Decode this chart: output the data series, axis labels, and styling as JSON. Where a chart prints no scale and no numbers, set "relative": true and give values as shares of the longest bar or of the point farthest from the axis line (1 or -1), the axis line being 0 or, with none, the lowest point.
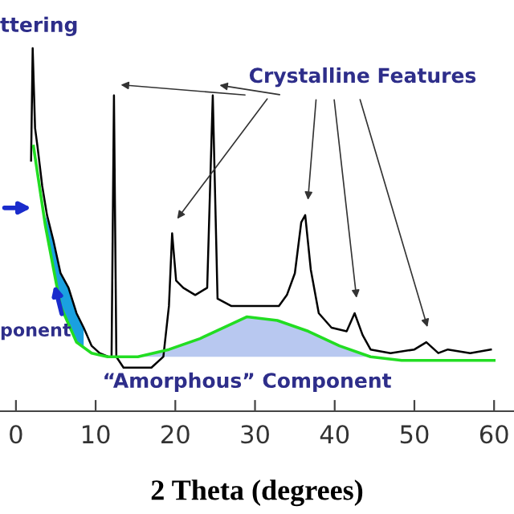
{
  "chart_data": {
    "type": "line",
    "relative": true,
    "xlabel": "2 Theta (degrees)",
    "xlim": [
      -2,
      62.5
    ],
    "xticks": [
      0,
      10,
      20,
      30,
      40,
      50,
      60
    ],
    "grid": false,
    "marker": "none",
    "line_style": "solid",
    "annotations": [
      "ttering",
      "Crystalline Features",
      {
        "text": "ponent",
        "x": 4.7,
        "y": 0.36
      },
      "“Amorphous” Component"
    ],
    "series": [
      {
        "type": "area",
        "color": "#b8c8f0",
        "x": [
          15.3,
          19.2,
          23.1,
          27,
          29,
          32.8,
          36.7,
          40.6,
          44.5
        ],
        "values": [
          0.15,
          0.17,
          0.2,
          0.24,
          0.26,
          0.25,
          0.22,
          0.18,
          0.15
        ]
      },
      {
        "type": "area",
        "color": "#1aa0e0",
        "x": [
          3.7,
          4.7,
          5.6,
          6.6,
          7.6,
          8.5
        ],
        "values": [
          0.54,
          0.47,
          0.38,
          0.34,
          0.27,
          0.23
        ]
      },
      {
        "color": "#000000",
        "x": [
          1.9,
          2.1,
          2.4,
          2.7,
          3.3,
          3.9,
          4.7,
          5.6,
          6.6,
          7.6,
          8.5,
          9.5,
          10.5,
          11.6,
          12.0,
          12.3,
          12.6,
          13.5,
          15,
          17,
          18.5,
          19.2,
          19.6,
          20.1,
          21,
          22.5,
          24,
          24.7,
          25.3,
          27,
          29,
          31,
          33,
          34,
          35,
          35.8,
          36.3,
          37,
          38,
          39.6,
          41.5,
          42.5,
          43.5,
          44.5,
          47,
          50,
          51.5,
          53,
          54.2,
          57,
          59.6
        ],
        "values": [
          0.69,
          1.0,
          0.78,
          0.73,
          0.62,
          0.54,
          0.47,
          0.38,
          0.34,
          0.27,
          0.23,
          0.18,
          0.16,
          0.15,
          0.15,
          0.87,
          0.15,
          0.12,
          0.12,
          0.12,
          0.15,
          0.29,
          0.49,
          0.36,
          0.34,
          0.32,
          0.34,
          0.87,
          0.31,
          0.29,
          0.29,
          0.29,
          0.29,
          0.32,
          0.38,
          0.52,
          0.54,
          0.39,
          0.27,
          0.23,
          0.22,
          0.27,
          0.21,
          0.17,
          0.16,
          0.17,
          0.19,
          0.16,
          0.17,
          0.16,
          0.17
        ]
      },
      {
        "color": "#22dd22",
        "x": [
          2.2,
          3.7,
          5.6,
          7.6,
          9.5,
          11.5,
          15.3,
          19.2,
          23.1,
          27,
          29,
          32.8,
          36.7,
          40.6,
          44.5,
          48.4,
          60
        ],
        "values": [
          0.73,
          0.51,
          0.29,
          0.19,
          0.16,
          0.15,
          0.15,
          0.17,
          0.2,
          0.24,
          0.26,
          0.25,
          0.22,
          0.18,
          0.15,
          0.14,
          0.14
        ]
      }
    ]
  }
}
